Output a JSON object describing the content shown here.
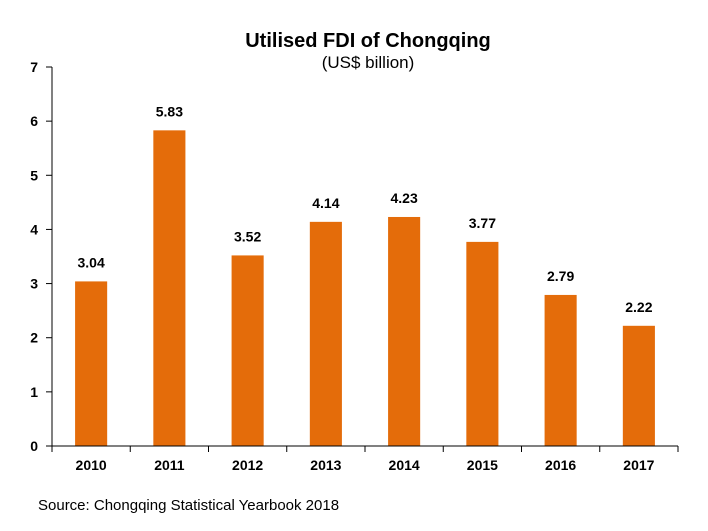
{
  "chart_data": {
    "type": "bar",
    "title": "Utilised FDI of Chongqing",
    "subtitle": "(US$ billion)",
    "categories": [
      "2010",
      "2011",
      "2012",
      "2013",
      "2014",
      "2015",
      "2016",
      "2017"
    ],
    "values": [
      3.04,
      5.83,
      3.52,
      4.14,
      4.23,
      3.77,
      2.79,
      2.22
    ],
    "data_labels": [
      "3.04",
      "5.83",
      "3.52",
      "4.14",
      "4.23",
      "3.77",
      "2.79",
      "2.22"
    ],
    "xlabel": "",
    "ylabel": "",
    "ylim": [
      0,
      7
    ],
    "yticks": [
      "0",
      "1",
      "2",
      "3",
      "4",
      "5",
      "6",
      "7"
    ],
    "grid": false,
    "legend": "none",
    "bar_color": "#E46C0A"
  },
  "source": "Source: Chongqing Statistical Yearbook 2018"
}
